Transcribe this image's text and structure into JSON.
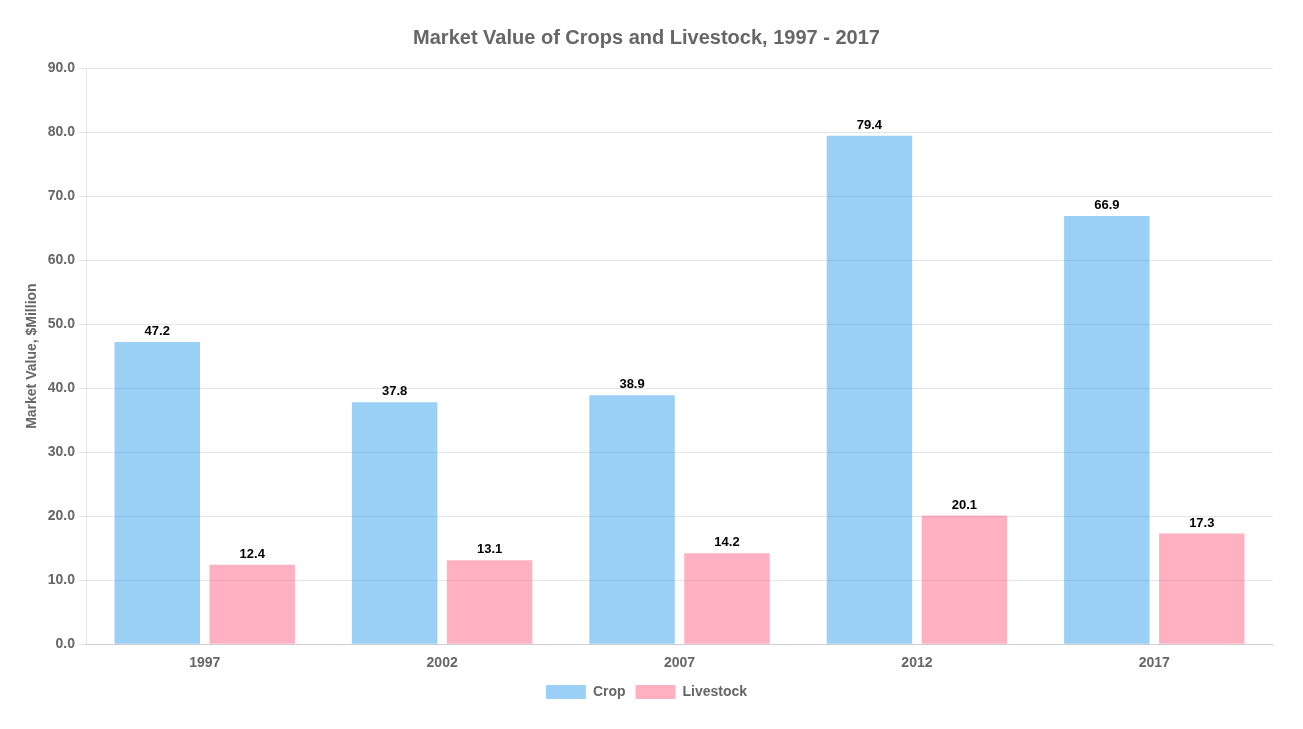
{
  "chart_data": {
    "type": "bar",
    "title": "Market Value of Crops and Livestock, 1997 - 2017",
    "categories": [
      "1997",
      "2002",
      "2007",
      "2012",
      "2017"
    ],
    "series": [
      {
        "name": "Crop",
        "values": [
          47.2,
          37.8,
          38.9,
          79.4,
          66.9
        ]
      },
      {
        "name": "Livestock",
        "values": [
          12.4,
          13.1,
          14.2,
          20.1,
          17.3
        ]
      }
    ],
    "ylabel": "Market Value, $Million",
    "ylim": [
      0,
      90
    ],
    "yticks": [
      {
        "value": 0,
        "label": "0.0"
      },
      {
        "value": 10,
        "label": "10.0"
      },
      {
        "value": 20,
        "label": "20.0"
      },
      {
        "value": 30,
        "label": "30.0"
      },
      {
        "value": 40,
        "label": "40.0"
      },
      {
        "value": 50,
        "label": "50.0"
      },
      {
        "value": 60,
        "label": "60.0"
      },
      {
        "value": 70,
        "label": "70.0"
      },
      {
        "value": 80,
        "label": "80.0"
      },
      {
        "value": 90,
        "label": "90.0"
      }
    ],
    "grid": true,
    "legend": "bottom",
    "data_labels": true
  }
}
